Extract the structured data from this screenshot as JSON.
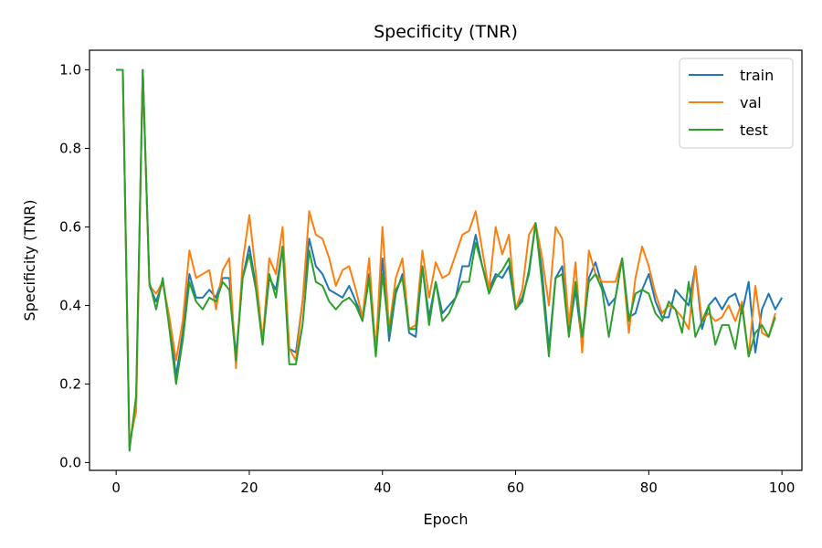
{
  "chart_data": {
    "type": "line",
    "title": "Specificity (TNR)",
    "xlabel": "Epoch",
    "ylabel": "Specificity (TNR)",
    "xlim": [
      -4,
      103
    ],
    "ylim": [
      -0.02,
      1.05
    ],
    "xticks": [
      0,
      20,
      40,
      60,
      80,
      100
    ],
    "xtick_labels": [
      "0",
      "20",
      "40",
      "60",
      "80",
      "100"
    ],
    "yticks": [
      0.0,
      0.2,
      0.4,
      0.6,
      0.8,
      1.0
    ],
    "ytick_labels": [
      "0.0",
      "0.2",
      "0.4",
      "0.6",
      "0.8",
      "1.0"
    ],
    "grid": false,
    "legend_position": "top-right",
    "series": [
      {
        "name": "train",
        "color": "#1f77b4",
        "values": [
          1.0,
          1.0,
          0.04,
          0.15,
          1.0,
          0.45,
          0.41,
          0.46,
          0.36,
          0.22,
          0.33,
          0.48,
          0.42,
          0.42,
          0.44,
          0.42,
          0.47,
          0.47,
          0.27,
          0.47,
          0.55,
          0.45,
          0.31,
          0.47,
          0.44,
          0.55,
          0.29,
          0.28,
          0.41,
          0.57,
          0.5,
          0.48,
          0.44,
          0.43,
          0.42,
          0.45,
          0.41,
          0.37,
          0.48,
          0.29,
          0.52,
          0.31,
          0.43,
          0.48,
          0.33,
          0.32,
          0.5,
          0.37,
          0.46,
          0.38,
          0.4,
          0.42,
          0.5,
          0.5,
          0.58,
          0.5,
          0.44,
          0.48,
          0.47,
          0.5,
          0.39,
          0.42,
          0.48,
          0.61,
          0.48,
          0.29,
          0.47,
          0.5,
          0.33,
          0.44,
          0.3,
          0.47,
          0.51,
          0.45,
          0.4,
          0.42,
          0.52,
          0.37,
          0.38,
          0.44,
          0.48,
          0.41,
          0.37,
          0.37,
          0.44,
          0.42,
          0.4,
          0.5,
          0.34,
          0.4,
          0.42,
          0.39,
          0.42,
          0.43,
          0.38,
          0.46,
          0.28,
          0.39,
          0.43,
          0.39,
          0.42
        ]
      },
      {
        "name": "val",
        "color": "#ff7f0e",
        "values": [
          1.0,
          1.0,
          0.05,
          0.13,
          1.0,
          0.45,
          0.43,
          0.46,
          0.37,
          0.26,
          0.36,
          0.54,
          0.47,
          0.48,
          0.49,
          0.39,
          0.49,
          0.52,
          0.24,
          0.51,
          0.63,
          0.48,
          0.31,
          0.52,
          0.48,
          0.6,
          0.29,
          0.26,
          0.41,
          0.64,
          0.58,
          0.57,
          0.52,
          0.45,
          0.49,
          0.5,
          0.44,
          0.37,
          0.52,
          0.28,
          0.6,
          0.34,
          0.47,
          0.52,
          0.34,
          0.35,
          0.54,
          0.42,
          0.51,
          0.47,
          0.48,
          0.53,
          0.58,
          0.59,
          0.64,
          0.54,
          0.44,
          0.6,
          0.53,
          0.58,
          0.39,
          0.44,
          0.58,
          0.61,
          0.52,
          0.4,
          0.6,
          0.57,
          0.35,
          0.51,
          0.28,
          0.54,
          0.48,
          0.46,
          0.46,
          0.46,
          0.52,
          0.33,
          0.47,
          0.55,
          0.5,
          0.43,
          0.38,
          0.4,
          0.39,
          0.37,
          0.34,
          0.5,
          0.36,
          0.38,
          0.36,
          0.37,
          0.4,
          0.36,
          0.41,
          0.27,
          0.45,
          0.33,
          0.32,
          0.38
        ]
      },
      {
        "name": "test",
        "color": "#2ca02c",
        "values": [
          1.0,
          1.0,
          0.03,
          0.17,
          1.0,
          0.46,
          0.39,
          0.47,
          0.34,
          0.2,
          0.31,
          0.46,
          0.41,
          0.39,
          0.42,
          0.41,
          0.46,
          0.44,
          0.26,
          0.47,
          0.53,
          0.44,
          0.3,
          0.48,
          0.42,
          0.55,
          0.25,
          0.25,
          0.35,
          0.54,
          0.46,
          0.45,
          0.41,
          0.39,
          0.41,
          0.42,
          0.4,
          0.36,
          0.47,
          0.27,
          0.48,
          0.33,
          0.44,
          0.47,
          0.34,
          0.34,
          0.5,
          0.35,
          0.46,
          0.36,
          0.38,
          0.42,
          0.46,
          0.46,
          0.56,
          0.5,
          0.43,
          0.47,
          0.49,
          0.52,
          0.39,
          0.41,
          0.49,
          0.61,
          0.45,
          0.27,
          0.47,
          0.48,
          0.32,
          0.46,
          0.32,
          0.46,
          0.48,
          0.44,
          0.32,
          0.42,
          0.52,
          0.36,
          0.43,
          0.44,
          0.43,
          0.38,
          0.36,
          0.41,
          0.39,
          0.33,
          0.46,
          0.32,
          0.36,
          0.4,
          0.3,
          0.35,
          0.35,
          0.29,
          0.4,
          0.27,
          0.33,
          0.35,
          0.32,
          0.37
        ]
      }
    ]
  }
}
